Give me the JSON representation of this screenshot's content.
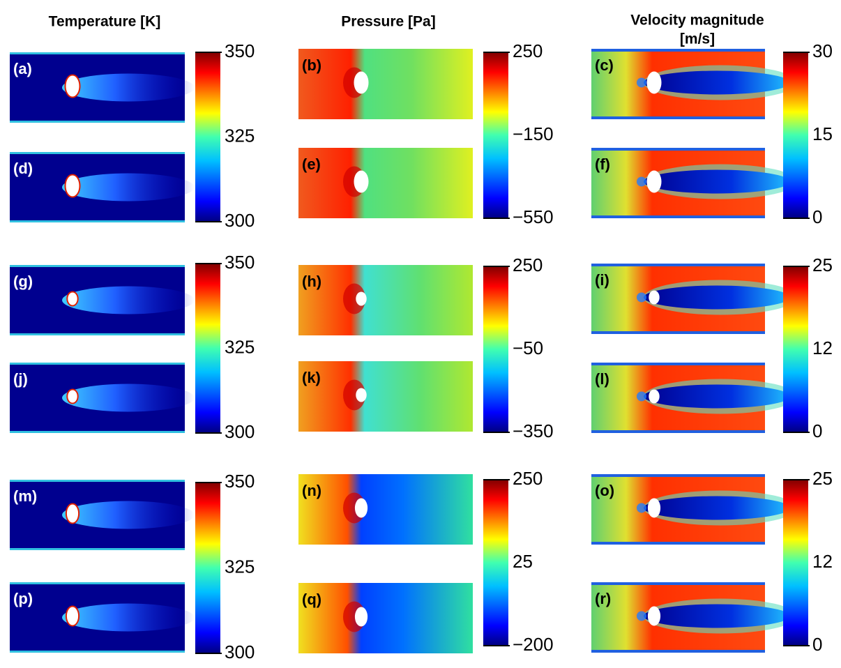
{
  "columns": [
    {
      "title_lines": [
        "Temperature [K]"
      ],
      "groups": [
        {
          "panels": [
            "(a)",
            "(d)"
          ],
          "colorbar": [
            "350",
            "325",
            "300"
          ]
        },
        {
          "panels": [
            "(g)",
            "(j)"
          ],
          "colorbar": [
            "350",
            "325",
            "300"
          ]
        },
        {
          "panels": [
            "(m)",
            "(p)"
          ],
          "colorbar": [
            "350",
            "325",
            "300"
          ]
        }
      ]
    },
    {
      "title_lines": [
        "Pressure [Pa]"
      ],
      "groups": [
        {
          "panels": [
            "(b)",
            "(e)"
          ],
          "colorbar": [
            "250",
            "−150",
            "−550"
          ]
        },
        {
          "panels": [
            "(h)",
            "(k)"
          ],
          "colorbar": [
            "250",
            "−50",
            "−350"
          ]
        },
        {
          "panels": [
            "(n)",
            "(q)"
          ],
          "colorbar": [
            "250",
            "25",
            "−200"
          ]
        }
      ]
    },
    {
      "title_lines": [
        "Velocity magnitude",
        "[m/s]"
      ],
      "groups": [
        {
          "panels": [
            "(c)",
            "(f)"
          ],
          "colorbar": [
            "30",
            "15",
            "0"
          ]
        },
        {
          "panels": [
            "(i)",
            "(l)"
          ],
          "colorbar": [
            "25",
            "12",
            "0"
          ]
        },
        {
          "panels": [
            "(o)",
            "(r)"
          ],
          "colorbar": [
            "25",
            "12",
            "0"
          ]
        }
      ]
    }
  ]
}
